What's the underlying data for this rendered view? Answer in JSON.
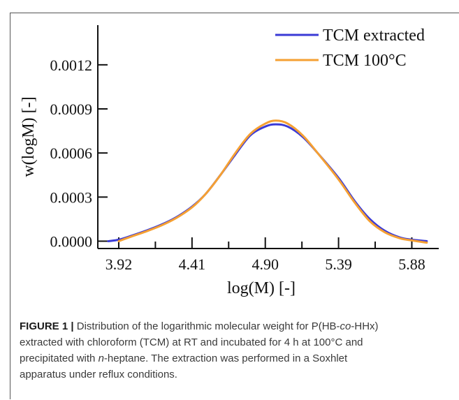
{
  "chart_data": {
    "type": "line",
    "xlabel": "log(M) [-]",
    "ylabel": "w(logM) [-]",
    "xlim": [
      3.78,
      6.06
    ],
    "ylim": [
      -5e-05,
      0.00147
    ],
    "x_ticks": [
      3.92,
      4.41,
      4.9,
      5.39,
      5.88
    ],
    "x_tick_labels": [
      "3.92",
      "4.41",
      "4.90",
      "5.39",
      "5.88"
    ],
    "x_minor_ticks": [
      4.165,
      4.655,
      5.145,
      5.635
    ],
    "y_ticks": [
      0.0,
      0.0003,
      0.0006,
      0.0009,
      0.0012
    ],
    "y_tick_labels": [
      "0.0000",
      "0.0003",
      "0.0006",
      "0.0009",
      "0.0012"
    ],
    "legend_position": "top-right",
    "series": [
      {
        "name": "TCM extracted",
        "color": "#3a3ad6",
        "x": [
          3.85,
          3.92,
          4.0,
          4.1,
          4.2,
          4.3,
          4.41,
          4.5,
          4.6,
          4.7,
          4.8,
          4.9,
          4.97,
          5.05,
          5.15,
          5.25,
          5.39,
          5.5,
          5.6,
          5.7,
          5.8,
          5.88,
          5.98
        ],
        "y": [
          0.0,
          1e-05,
          3.5e-05,
          7e-05,
          0.00011,
          0.00016,
          0.000235,
          0.00032,
          0.00045,
          0.00059,
          0.00072,
          0.00078,
          0.000795,
          0.00078,
          0.00071,
          0.0006,
          0.00043,
          0.00027,
          0.00015,
          7e-05,
          2.5e-05,
          1e-05,
          0.0
        ]
      },
      {
        "name": "TCM 100°C",
        "color": "#f5a033",
        "x": [
          3.92,
          4.0,
          4.1,
          4.2,
          4.3,
          4.41,
          4.5,
          4.6,
          4.7,
          4.8,
          4.9,
          4.97,
          5.05,
          5.15,
          5.25,
          5.39,
          5.5,
          5.6,
          5.7,
          5.8,
          5.88,
          5.98
        ],
        "y": [
          0.0,
          3e-05,
          6.5e-05,
          0.000105,
          0.000155,
          0.00023,
          0.00032,
          0.00045,
          0.0006,
          0.00073,
          0.0008,
          0.00082,
          0.0008,
          0.00072,
          0.0006,
          0.00042,
          0.00026,
          0.000135,
          6e-05,
          2e-05,
          5e-06,
          -1e-05
        ]
      }
    ]
  },
  "caption": {
    "label": "FIGURE 1",
    "separator": " | ",
    "line1_a": "Distribution of the logarithmic molecular weight for P(HB-",
    "line1_italic": "co",
    "line1_b": "-HHx)",
    "line2": "extracted with chloroform (TCM) at RT and incubated for 4 h at 100°C and",
    "line3_a": "precipitated with ",
    "line3_italic": "n",
    "line3_b": "-heptane. The extraction was performed in a Soxhlet",
    "line4": "apparatus under reflux conditions."
  }
}
